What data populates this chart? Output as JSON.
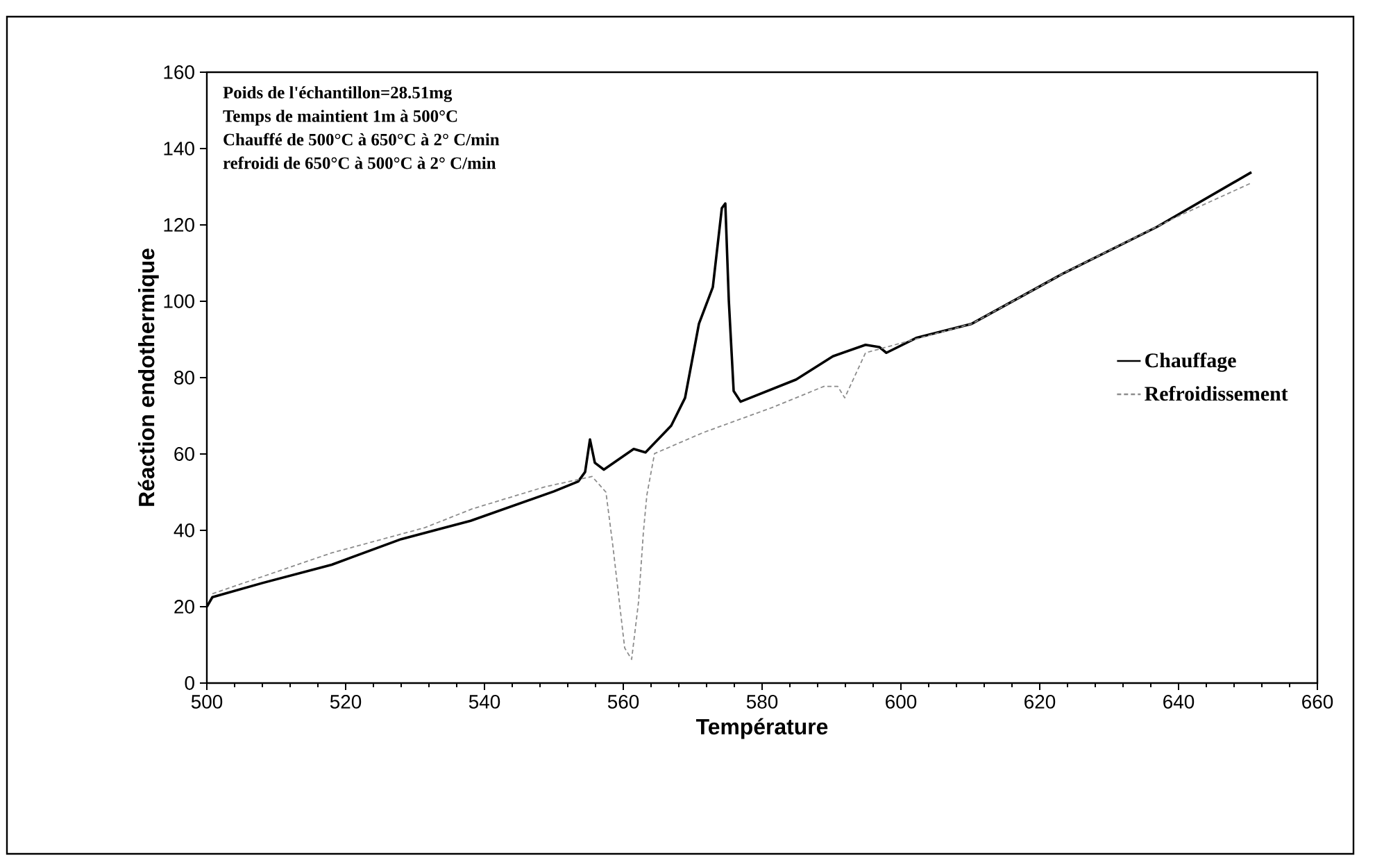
{
  "chart_data": {
    "type": "line",
    "xlabel": "Température",
    "ylabel": "Réaction endothermique",
    "annotations": [
      "Poids de l'échantillon=28.51mg",
      "Temps de maintient 1m à 500°C",
      "Chauffé de 500°C à 650°C à 2° C/min",
      "refroidi de 650°C à 500°C à 2° C/min"
    ],
    "xlim": [
      500,
      660
    ],
    "ylim": [
      0,
      160
    ],
    "xticks": [
      500,
      520,
      540,
      560,
      580,
      600,
      620,
      640,
      660
    ],
    "yticks": [
      0,
      20,
      40,
      60,
      80,
      100,
      120,
      140,
      160
    ],
    "legend": "right",
    "series": [
      {
        "name": "Chauffage",
        "color": "#000000",
        "line_style": "solid",
        "x": [
          500,
          500.8,
          508,
          518,
          528,
          538,
          550,
          553.5,
          554.5,
          555.2,
          555.9,
          557.2,
          561.5,
          563.2,
          566.9,
          568.9,
          570.9,
          572.9,
          574.2,
          574.7,
          575.2,
          575.9,
          576.9,
          584.9,
          590.2,
          594.9,
          596.9,
          597.9,
          602.2,
          610.2,
          623.5,
          636.9,
          650.5
        ],
        "values": [
          20,
          22.5,
          26.2,
          31,
          37.7,
          42.5,
          50.2,
          52.8,
          55.3,
          63.8,
          57.7,
          55.9,
          61.3,
          60.4,
          67.4,
          74.7,
          94.1,
          103.7,
          124.4,
          125.6,
          100.3,
          76.5,
          73.7,
          79.5,
          85.6,
          88.6,
          88,
          86.5,
          90.4,
          94.1,
          107.4,
          119.5,
          133.8
        ]
      },
      {
        "name": "Refroidissement",
        "color": "#8c8c8c",
        "line_style": "dashed",
        "x": [
          500.8,
          518,
          531.4,
          538.2,
          544.7,
          548.7,
          555.5,
          557.5,
          558.5,
          560.2,
          561.2,
          562.2,
          562.9,
          563.4,
          564.5,
          571.5,
          581.5,
          588.9,
          590.9,
          591.9,
          594.9,
          610.2,
          623.5,
          639.5,
          650.5
        ],
        "values": [
          23.4,
          34.1,
          40.7,
          45.6,
          49.2,
          51.4,
          54.1,
          50,
          35.9,
          9.2,
          6.2,
          21.3,
          39.6,
          49.3,
          60.1,
          65.6,
          72.2,
          77.7,
          77.7,
          74.7,
          86.5,
          94.1,
          107.4,
          121.9,
          131
        ]
      }
    ]
  }
}
